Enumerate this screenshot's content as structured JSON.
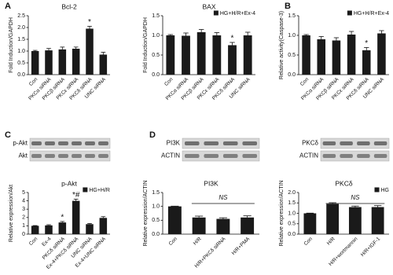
{
  "panel_labels": [
    "A",
    "B",
    "C",
    "D"
  ],
  "blots": [
    {
      "labels": [
        "p-Akt",
        "Akt"
      ]
    },
    {
      "labels": [
        "PI3K",
        "ACTIN"
      ]
    },
    {
      "labels": [
        "PKCδ",
        "ACTIN"
      ]
    }
  ],
  "chart_data": [
    {
      "type": "bar",
      "title": "Bcl-2",
      "y_label": "Fold Induction/GAPDH",
      "categories": [
        "Con",
        "PKCα siRNA",
        "PKCβ siRNA",
        "PKCε siRNA",
        "PKCδ siRNA",
        "UNC siRNA"
      ],
      "values": [
        1.0,
        1.03,
        1.07,
        1.1,
        1.95,
        0.85
      ],
      "errors": [
        0.03,
        0.08,
        0.1,
        0.07,
        0.1,
        0.1
      ],
      "value_annotations": [
        null,
        null,
        null,
        null,
        "*",
        null
      ],
      "color": "#1a1a1a",
      "ylim": [
        0,
        2.5
      ],
      "yticks": [
        {
          "value": 0,
          "label": "0.0"
        },
        {
          "value": 0.5,
          "label": "0.5"
        },
        {
          "value": 1,
          "label": "1.0"
        },
        {
          "value": 1.5,
          "label": "1.5"
        },
        {
          "value": 2,
          "label": "2.0"
        },
        {
          "value": 2.5,
          "label": "2.5"
        }
      ]
    },
    {
      "type": "bar",
      "title": "BAX",
      "y_label": "Fold Induction/GAPDH",
      "legend": "HG+H/R+Ex-4",
      "categories": [
        "Con",
        "PKCα siRNA",
        "PKCβ siRNA",
        "PKCε siRNA",
        "PKCδ siRNA",
        "UNC siRNA"
      ],
      "values": [
        1.0,
        0.99,
        1.08,
        1.0,
        0.75,
        1.0
      ],
      "errors": [
        0.02,
        0.07,
        0.07,
        0.07,
        0.07,
        0.08
      ],
      "value_annotations": [
        null,
        null,
        null,
        null,
        "*",
        null
      ],
      "color": "#1a1a1a",
      "ylim": [
        0,
        1.5
      ],
      "yticks": [
        {
          "value": 0,
          "label": "0.0"
        },
        {
          "value": 0.5,
          "label": "0.5"
        },
        {
          "value": 1,
          "label": "1.0"
        },
        {
          "value": 1.5,
          "label": "1.5"
        }
      ]
    },
    {
      "type": "bar",
      "y_label": "Relative activity(Caspase-3)",
      "legend": "HG+H/R+Ex-4",
      "categories": [
        "Con",
        "PKCα siRNA",
        "PKCβ siRNA",
        "PKCε siRNA",
        "PKCδ siRNA",
        "UNC siRNA"
      ],
      "values": [
        1.0,
        0.9,
        0.87,
        1.02,
        0.62,
        1.05
      ],
      "errors": [
        0.02,
        0.07,
        0.07,
        0.08,
        0.07,
        0.07
      ],
      "value_annotations": [
        null,
        null,
        null,
        null,
        "*",
        null
      ],
      "color": "#1a1a1a",
      "ylim": [
        0,
        1.5
      ],
      "yticks": [
        {
          "value": 0,
          "label": "0.0"
        },
        {
          "value": 0.5,
          "label": "0.5"
        },
        {
          "value": 1,
          "label": "1.0"
        },
        {
          "value": 1.5,
          "label": "1.5"
        }
      ]
    },
    {
      "type": "bar",
      "title": "p-Akt",
      "y_label": "Relative expression/Akt",
      "legend": "HG+H/R",
      "categories": [
        "Con",
        "Ex-4",
        "PKCδ siRNA",
        "Ex-4+PKCδ siRNA",
        "UNC siRNA",
        "Ex-4+UNC siRNA"
      ],
      "values": [
        1.0,
        1.05,
        1.4,
        4.0,
        1.2,
        1.95
      ],
      "errors": [
        0.03,
        0.08,
        0.12,
        0.2,
        0.08,
        0.15
      ],
      "value_annotations": [
        null,
        null,
        "*",
        "*#",
        null,
        null
      ],
      "color": "#1a1a1a",
      "ylim": [
        0,
        5
      ],
      "yticks": [
        0,
        1,
        2,
        3,
        4,
        5
      ]
    },
    {
      "type": "bar",
      "title": "PI3K",
      "y_label": "Relative expression/ACTIN",
      "annotation": "NS",
      "categories": [
        "Con",
        "H/R",
        "H/R+PKCδ siRNA",
        "H/R+PMA"
      ],
      "values": [
        1.0,
        0.6,
        0.55,
        0.6
      ],
      "errors": [
        0.01,
        0.05,
        0.04,
        0.06
      ],
      "color": "#1a1a1a",
      "ylim": [
        0,
        1.5
      ],
      "yticks": [
        {
          "value": 0,
          "label": "0.0"
        },
        {
          "value": 0.5,
          "label": "0.5"
        },
        {
          "value": 1,
          "label": "1.0"
        },
        {
          "value": 1.5,
          "label": "1.5"
        }
      ]
    },
    {
      "type": "bar",
      "title": "PKCδ",
      "y_label": "Relative expression/ACTIN",
      "legend": "HG",
      "annotation": "NS",
      "categories": [
        "Con",
        "H/R",
        "H/R+wortmannin",
        "H/R+IGF-1"
      ],
      "values": [
        1.0,
        1.45,
        1.3,
        1.3
      ],
      "errors": [
        0.01,
        0.06,
        0.05,
        0.07
      ],
      "color": "#1a1a1a",
      "ylim": [
        0,
        2
      ],
      "yticks": [
        {
          "value": 0,
          "label": "0.0"
        },
        {
          "value": 0.5,
          "label": "0.5"
        },
        {
          "value": 1,
          "label": "1.0"
        },
        {
          "value": 1.5,
          "label": "1.5"
        },
        {
          "value": 2,
          "label": "2.0"
        }
      ]
    }
  ]
}
